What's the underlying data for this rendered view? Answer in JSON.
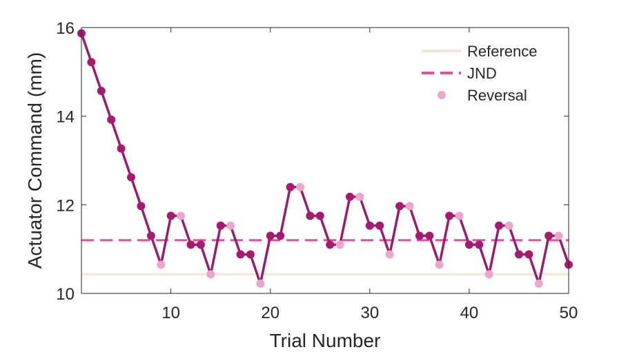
{
  "chart_data": {
    "type": "line",
    "xlabel": "Trial Number",
    "ylabel": "Actuator Command (mm)",
    "xlim": [
      1,
      50
    ],
    "ylim": [
      10,
      16
    ],
    "xticks": [
      10,
      20,
      30,
      40,
      50
    ],
    "yticks": [
      10,
      12,
      14,
      16
    ],
    "grid": false,
    "legend_position": "top-right",
    "colors": {
      "trial_line": "#9c1a6a",
      "trial_marker": "#a81a6f",
      "reference": "#f0e6dc",
      "jnd": "#f0489c",
      "reversal": "#eba6c8",
      "axis": "#262626"
    },
    "reference": {
      "name": "Reference",
      "value": 10.43
    },
    "jnd": {
      "name": "JND",
      "value": 11.2
    },
    "reversal_legend": "Reversal",
    "series": [
      {
        "x": [
          1,
          2,
          3,
          4,
          5,
          6,
          7,
          8,
          9,
          10,
          11,
          12,
          13,
          14,
          15,
          16,
          17,
          18,
          19,
          20,
          21,
          22,
          23,
          24,
          25,
          26,
          27,
          28,
          29,
          30,
          31,
          32,
          33,
          34,
          35,
          36,
          37,
          38,
          39,
          40,
          41,
          42,
          43,
          44,
          45,
          46,
          47,
          48,
          49,
          50
        ],
        "values": [
          15.87,
          15.22,
          14.57,
          13.92,
          13.27,
          12.62,
          11.97,
          11.3,
          10.65,
          11.75,
          11.75,
          11.1,
          11.1,
          10.43,
          11.53,
          11.53,
          10.88,
          10.88,
          10.22,
          11.3,
          11.3,
          12.4,
          12.4,
          11.75,
          11.75,
          11.1,
          11.1,
          12.18,
          12.18,
          11.53,
          11.53,
          10.88,
          11.97,
          11.97,
          11.3,
          11.3,
          10.65,
          11.75,
          11.75,
          11.1,
          11.1,
          10.43,
          11.53,
          11.53,
          10.88,
          10.88,
          10.22,
          11.3,
          11.3,
          10.65
        ]
      }
    ],
    "reversals": [
      9,
      11,
      14,
      16,
      19,
      23,
      27,
      29,
      32,
      34,
      37,
      39,
      42,
      44,
      47,
      49
    ]
  }
}
